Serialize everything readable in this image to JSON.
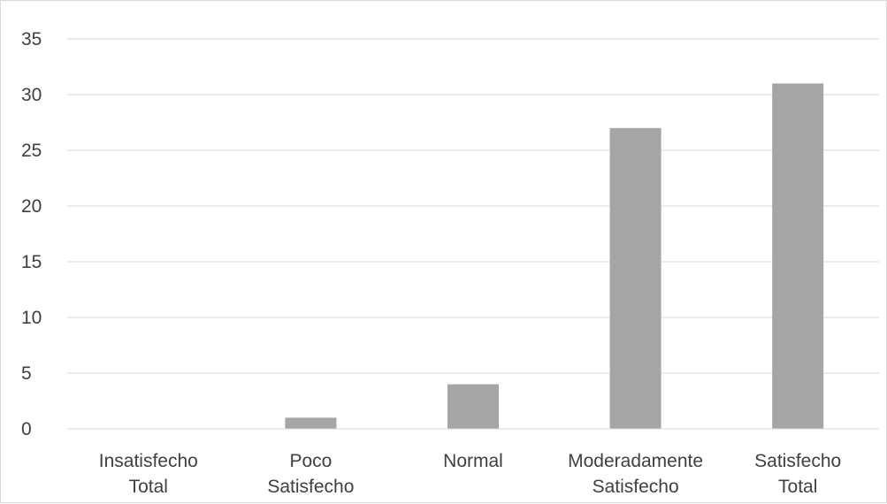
{
  "chart_data": {
    "type": "bar",
    "title": "",
    "xlabel": "",
    "ylabel": "",
    "categories": [
      [
        "Insatisfecho",
        "Total"
      ],
      [
        "Poco",
        "Satisfecho"
      ],
      [
        "Normal"
      ],
      [
        "Moderadamente",
        "Satisfecho"
      ],
      [
        "Satisfecho",
        "Total"
      ]
    ],
    "values": [
      0,
      1,
      4,
      27,
      31
    ],
    "ylim": [
      0,
      35
    ],
    "yticks": [
      "0",
      "5",
      "10",
      "15",
      "20",
      "25",
      "30",
      "35"
    ],
    "grid": true,
    "legend": "none",
    "bar_color": "#a5a5a5",
    "grid_color": "#d9d9d9"
  }
}
